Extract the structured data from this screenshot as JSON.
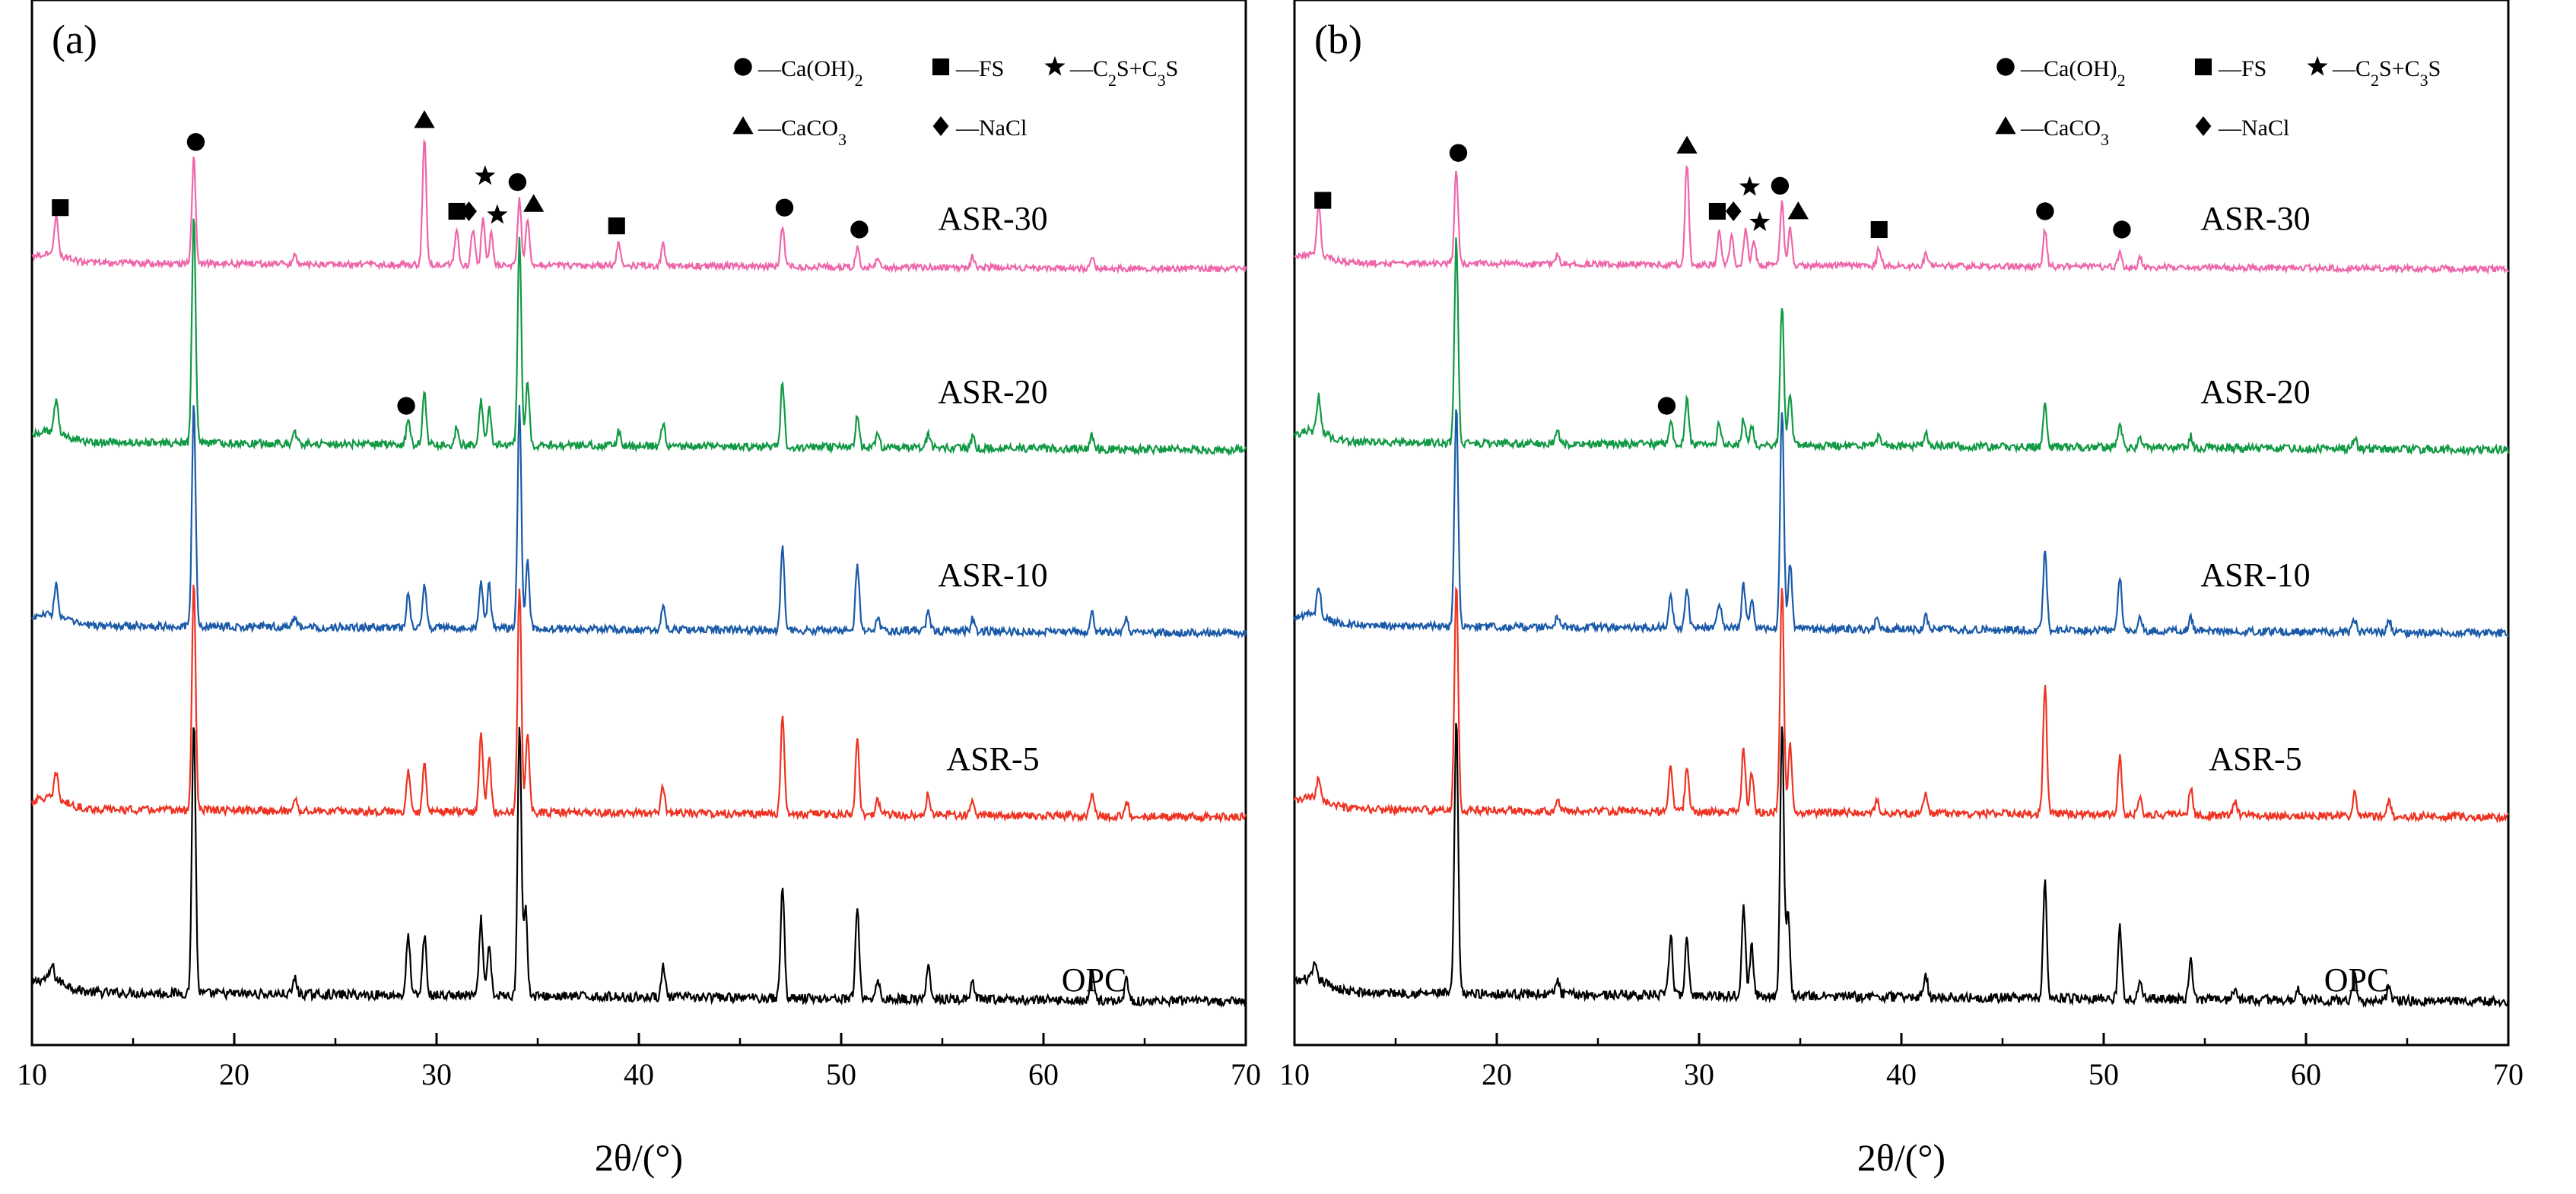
{
  "figure": {
    "description_free": true
  },
  "chart_data": [
    {
      "type": "line",
      "panel_label": "(a)",
      "xlabel": "2θ/(°)",
      "ylabel": "",
      "xlim": [
        10,
        70
      ],
      "x_ticks": [
        10,
        20,
        30,
        40,
        50,
        60,
        70
      ],
      "grid": false,
      "legend": [
        {
          "symbol": "circle",
          "text": "—Ca(OH)",
          "sub": "2",
          "tail": ""
        },
        {
          "symbol": "square",
          "text": "—FS",
          "sub": "",
          "tail": ""
        },
        {
          "symbol": "star",
          "text": "—C",
          "sub": "2",
          "tail": "S+C",
          "sub2": "3",
          "tail2": "S"
        },
        {
          "symbol": "triangle",
          "text": "—CaCO",
          "sub": "3",
          "tail": ""
        },
        {
          "symbol": "diamond",
          "text": "—NaCl",
          "sub": "",
          "tail": ""
        }
      ],
      "series": [
        {
          "name": "OPC",
          "color": "#000000",
          "offset": 0,
          "peaks": [
            [
              11.0,
              0.05
            ],
            [
              18.0,
              1.0
            ],
            [
              23.0,
              0.06
            ],
            [
              28.6,
              0.22
            ],
            [
              29.4,
              0.22
            ],
            [
              32.2,
              0.28
            ],
            [
              32.6,
              0.18
            ],
            [
              34.1,
              1.0
            ],
            [
              34.4,
              0.32
            ],
            [
              41.2,
              0.12
            ],
            [
              47.1,
              0.42
            ],
            [
              50.8,
              0.34
            ],
            [
              51.8,
              0.07
            ],
            [
              54.3,
              0.12
            ],
            [
              56.5,
              0.06
            ],
            [
              62.4,
              0.12
            ],
            [
              64.1,
              0.08
            ]
          ]
        },
        {
          "name": "ASR-5",
          "color": "#ee3322",
          "offset": 1,
          "peaks": [
            [
              11.2,
              0.12
            ],
            [
              18.0,
              1.0
            ],
            [
              23.0,
              0.05
            ],
            [
              28.6,
              0.18
            ],
            [
              29.4,
              0.22
            ],
            [
              32.2,
              0.36
            ],
            [
              32.6,
              0.24
            ],
            [
              34.1,
              1.0
            ],
            [
              34.5,
              0.34
            ],
            [
              41.2,
              0.12
            ],
            [
              47.1,
              0.42
            ],
            [
              50.8,
              0.32
            ],
            [
              51.8,
              0.07
            ],
            [
              54.3,
              0.1
            ],
            [
              56.5,
              0.06
            ],
            [
              62.4,
              0.1
            ],
            [
              64.1,
              0.07
            ]
          ]
        },
        {
          "name": "ASR-10",
          "color": "#1a5aa8",
          "offset": 2,
          "peaks": [
            [
              11.2,
              0.14
            ],
            [
              18.0,
              1.0
            ],
            [
              23.0,
              0.05
            ],
            [
              28.6,
              0.15
            ],
            [
              29.4,
              0.2
            ],
            [
              32.2,
              0.22
            ],
            [
              32.6,
              0.2
            ],
            [
              34.1,
              1.0
            ],
            [
              34.5,
              0.3
            ],
            [
              41.2,
              0.1
            ],
            [
              47.1,
              0.38
            ],
            [
              50.8,
              0.3
            ],
            [
              51.8,
              0.06
            ],
            [
              54.3,
              0.1
            ],
            [
              56.5,
              0.06
            ],
            [
              62.4,
              0.09
            ],
            [
              64.1,
              0.06
            ]
          ]
        },
        {
          "name": "ASR-20",
          "color": "#119944",
          "offset": 3,
          "peaks": [
            [
              11.2,
              0.14
            ],
            [
              18.0,
              1.0
            ],
            [
              23.0,
              0.05
            ],
            [
              28.6,
              0.1
            ],
            [
              29.4,
              0.22
            ],
            [
              31.0,
              0.08
            ],
            [
              32.2,
              0.2
            ],
            [
              32.6,
              0.16
            ],
            [
              34.1,
              0.9
            ],
            [
              34.5,
              0.28
            ],
            [
              39.0,
              0.06
            ],
            [
              41.2,
              0.1
            ],
            [
              47.1,
              0.28
            ],
            [
              50.8,
              0.14
            ],
            [
              51.8,
              0.06
            ],
            [
              54.3,
              0.06
            ],
            [
              56.5,
              0.05
            ],
            [
              62.4,
              0.06
            ]
          ]
        },
        {
          "name": "ASR-30",
          "color": "#ee66aa",
          "offset": 4,
          "peaks": [
            [
              11.2,
              0.22
            ],
            [
              18.0,
              0.58
            ],
            [
              23.0,
              0.05
            ],
            [
              29.4,
              0.7
            ],
            [
              31.0,
              0.2
            ],
            [
              31.8,
              0.2
            ],
            [
              32.3,
              0.26
            ],
            [
              32.7,
              0.18
            ],
            [
              34.1,
              0.36
            ],
            [
              34.5,
              0.24
            ],
            [
              39.0,
              0.12
            ],
            [
              41.2,
              0.12
            ],
            [
              47.1,
              0.22
            ],
            [
              50.8,
              0.1
            ],
            [
              51.8,
              0.05
            ],
            [
              56.5,
              0.06
            ],
            [
              62.4,
              0.07
            ]
          ]
        }
      ],
      "markers": [
        {
          "symbol": "square",
          "x": 11.4,
          "series": "ASR-30"
        },
        {
          "symbol": "circle",
          "x": 18.1,
          "series": "ASR-30"
        },
        {
          "symbol": "triangle",
          "x": 29.4,
          "series": "ASR-30"
        },
        {
          "symbol": "square",
          "x": 31.0,
          "series": "ASR-30"
        },
        {
          "symbol": "diamond",
          "x": 31.6,
          "series": "ASR-30"
        },
        {
          "symbol": "star",
          "x": 32.4,
          "series": "ASR-30",
          "tier": 2
        },
        {
          "symbol": "star",
          "x": 33.0,
          "series": "ASR-30"
        },
        {
          "symbol": "circle",
          "x": 34.0,
          "series": "ASR-30"
        },
        {
          "symbol": "triangle",
          "x": 34.8,
          "series": "ASR-30"
        },
        {
          "symbol": "square",
          "x": 38.9,
          "series": "ASR-30"
        },
        {
          "symbol": "circle",
          "x": 47.2,
          "series": "ASR-30"
        },
        {
          "symbol": "circle",
          "x": 50.9,
          "series": "ASR-30"
        },
        {
          "symbol": "circle",
          "x": 28.5,
          "series": "ASR-20"
        }
      ]
    },
    {
      "type": "line",
      "panel_label": "(b)",
      "xlabel": "2θ/(°)",
      "ylabel": "",
      "xlim": [
        10,
        70
      ],
      "x_ticks": [
        10,
        20,
        30,
        40,
        50,
        60,
        70
      ],
      "grid": false,
      "legend": [
        {
          "symbol": "circle",
          "text": "—Ca(OH)",
          "sub": "2",
          "tail": ""
        },
        {
          "symbol": "square",
          "text": "—FS",
          "sub": "",
          "tail": ""
        },
        {
          "symbol": "star",
          "text": "—C",
          "sub": "2",
          "tail": "S+C",
          "sub2": "3",
          "tail2": "S"
        },
        {
          "symbol": "triangle",
          "text": "—CaCO",
          "sub": "3",
          "tail": ""
        },
        {
          "symbol": "diamond",
          "text": "—NaCl",
          "sub": "",
          "tail": ""
        }
      ],
      "series": [
        {
          "name": "OPC",
          "color": "#000000",
          "offset": 0,
          "peaks": [
            [
              11.0,
              0.05
            ],
            [
              18.0,
              1.0
            ],
            [
              23.0,
              0.05
            ],
            [
              28.6,
              0.22
            ],
            [
              29.4,
              0.2
            ],
            [
              32.2,
              0.34
            ],
            [
              32.6,
              0.18
            ],
            [
              34.1,
              1.0
            ],
            [
              34.4,
              0.3
            ],
            [
              41.2,
              0.08
            ],
            [
              47.1,
              0.42
            ],
            [
              50.8,
              0.26
            ],
            [
              51.8,
              0.06
            ],
            [
              54.3,
              0.14
            ],
            [
              56.5,
              0.05
            ],
            [
              59.6,
              0.05
            ],
            [
              62.4,
              0.1
            ],
            [
              64.1,
              0.06
            ]
          ]
        },
        {
          "name": "ASR-5",
          "color": "#ee3322",
          "offset": 1,
          "peaks": [
            [
              11.2,
              0.1
            ],
            [
              18.0,
              1.0
            ],
            [
              23.0,
              0.05
            ],
            [
              28.6,
              0.2
            ],
            [
              29.4,
              0.2
            ],
            [
              32.2,
              0.28
            ],
            [
              32.6,
              0.18
            ],
            [
              34.1,
              1.0
            ],
            [
              34.5,
              0.3
            ],
            [
              38.8,
              0.05
            ],
            [
              41.2,
              0.1
            ],
            [
              47.1,
              0.56
            ],
            [
              50.8,
              0.26
            ],
            [
              51.8,
              0.08
            ],
            [
              54.3,
              0.12
            ],
            [
              56.5,
              0.06
            ],
            [
              62.4,
              0.1
            ],
            [
              64.1,
              0.07
            ]
          ]
        },
        {
          "name": "ASR-10",
          "color": "#1a5aa8",
          "offset": 2,
          "peaks": [
            [
              11.2,
              0.14
            ],
            [
              18.0,
              1.0
            ],
            [
              23.0,
              0.05
            ],
            [
              28.6,
              0.15
            ],
            [
              29.4,
              0.18
            ],
            [
              31.0,
              0.12
            ],
            [
              32.2,
              0.2
            ],
            [
              32.6,
              0.14
            ],
            [
              34.1,
              1.0
            ],
            [
              34.5,
              0.3
            ],
            [
              38.8,
              0.06
            ],
            [
              41.2,
              0.06
            ],
            [
              47.1,
              0.36
            ],
            [
              50.8,
              0.24
            ],
            [
              51.8,
              0.06
            ],
            [
              54.3,
              0.07
            ],
            [
              62.4,
              0.06
            ],
            [
              64.1,
              0.06
            ]
          ]
        },
        {
          "name": "ASR-20",
          "color": "#119944",
          "offset": 3,
          "peaks": [
            [
              11.2,
              0.16
            ],
            [
              18.0,
              0.9
            ],
            [
              23.0,
              0.05
            ],
            [
              28.6,
              0.1
            ],
            [
              29.4,
              0.2
            ],
            [
              31.0,
              0.1
            ],
            [
              32.2,
              0.12
            ],
            [
              32.6,
              0.08
            ],
            [
              34.1,
              0.62
            ],
            [
              34.5,
              0.22
            ],
            [
              38.9,
              0.06
            ],
            [
              41.2,
              0.06
            ],
            [
              47.1,
              0.2
            ],
            [
              50.8,
              0.12
            ],
            [
              51.8,
              0.05
            ],
            [
              54.3,
              0.05
            ],
            [
              62.4,
              0.05
            ]
          ]
        },
        {
          "name": "ASR-30",
          "color": "#ee66aa",
          "offset": 4,
          "peaks": [
            [
              11.2,
              0.26
            ],
            [
              18.0,
              0.52
            ],
            [
              23.0,
              0.05
            ],
            [
              29.4,
              0.56
            ],
            [
              31.0,
              0.2
            ],
            [
              31.6,
              0.16
            ],
            [
              32.3,
              0.2
            ],
            [
              32.7,
              0.14
            ],
            [
              34.1,
              0.34
            ],
            [
              34.5,
              0.2
            ],
            [
              38.9,
              0.1
            ],
            [
              41.2,
              0.06
            ],
            [
              47.1,
              0.2
            ],
            [
              50.8,
              0.08
            ],
            [
              51.8,
              0.05
            ]
          ]
        }
      ],
      "markers": [
        {
          "symbol": "square",
          "x": 11.4,
          "series": "ASR-30"
        },
        {
          "symbol": "circle",
          "x": 18.1,
          "series": "ASR-30"
        },
        {
          "symbol": "triangle",
          "x": 29.4,
          "series": "ASR-30"
        },
        {
          "symbol": "square",
          "x": 30.9,
          "series": "ASR-30"
        },
        {
          "symbol": "diamond",
          "x": 31.7,
          "series": "ASR-30"
        },
        {
          "symbol": "star",
          "x": 32.5,
          "series": "ASR-30",
          "tier": 2
        },
        {
          "symbol": "star",
          "x": 33.0,
          "series": "ASR-30"
        },
        {
          "symbol": "circle",
          "x": 34.0,
          "series": "ASR-30"
        },
        {
          "symbol": "triangle",
          "x": 34.9,
          "series": "ASR-30"
        },
        {
          "symbol": "square",
          "x": 38.9,
          "series": "ASR-30"
        },
        {
          "symbol": "circle",
          "x": 47.1,
          "series": "ASR-30"
        },
        {
          "symbol": "circle",
          "x": 50.9,
          "series": "ASR-30"
        },
        {
          "symbol": "circle",
          "x": 28.4,
          "series": "ASR-20"
        }
      ]
    }
  ]
}
